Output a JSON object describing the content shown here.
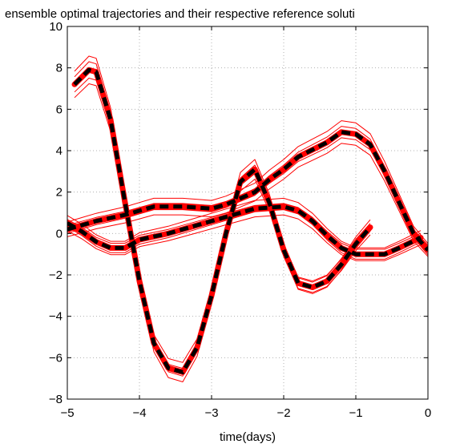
{
  "chart_data": {
    "type": "line",
    "title": "ensemble optimal trajectories and their respective reference soluti",
    "xlabel": "time(days)",
    "ylabel": "",
    "xlim": [
      -5,
      0
    ],
    "ylim": [
      -8,
      10
    ],
    "x_ticks": [
      -5,
      -4,
      -3,
      -2,
      -1,
      0
    ],
    "x_tick_labels": [
      "−5",
      "−4",
      "−3",
      "−2",
      "−1",
      "0"
    ],
    "y_ticks": [
      -8,
      -6,
      -4,
      -2,
      0,
      2,
      4,
      6,
      8,
      10
    ],
    "y_tick_labels": [
      "−8",
      "−6",
      "−4",
      "−2",
      "0",
      "2",
      "4",
      "6",
      "8",
      "10"
    ],
    "grid": true,
    "colors": {
      "ensemble": "#ff0000",
      "reference": "#000000"
    },
    "x": [
      -5.0,
      -4.8,
      -4.6,
      -4.4,
      -4.2,
      -4.0,
      -3.8,
      -3.6,
      -3.4,
      -3.2,
      -3.0,
      -2.8,
      -2.6,
      -2.4,
      -2.2,
      -2.0,
      -1.8,
      -1.6,
      -1.4,
      -1.2,
      -1.0,
      -0.8,
      -0.6,
      -0.4,
      -0.2,
      0.0
    ],
    "series": [
      {
        "role": "reference",
        "values": [
          7.2,
          7.9,
          7.8,
          5.5,
          1.5,
          -2.3,
          -5.3,
          -6.5,
          -6.7,
          -5.5,
          -3.0,
          0.0,
          2.5,
          3.1,
          1.5,
          -0.8,
          -2.4,
          -2.6,
          -2.3,
          -1.5,
          -0.5,
          0.3
        ],
        "x": [
          -4.9,
          -4.7,
          -4.6,
          -4.4,
          -4.2,
          -4.0,
          -3.8,
          -3.6,
          -3.4,
          -3.2,
          -3.0,
          -2.8,
          -2.6,
          -2.4,
          -2.2,
          -2.0,
          -1.8,
          -1.6,
          -1.4,
          -1.2,
          -1.0,
          -0.8
        ]
      },
      {
        "role": "reference",
        "values": [
          0.2,
          0.4,
          0.6,
          0.9,
          1.1,
          1.3,
          1.3,
          1.2,
          1.4,
          2.0,
          2.6,
          3.1,
          3.7,
          4.4,
          4.9,
          4.8,
          4.3,
          3.0,
          1.5,
          0.0,
          -0.8
        ],
        "x": [
          -5.0,
          -4.8,
          -4.6,
          -4.2,
          -4.0,
          -3.8,
          -3.4,
          -3.0,
          -2.8,
          -2.4,
          -2.2,
          -2.0,
          -1.8,
          -1.4,
          -1.2,
          -1.0,
          -0.8,
          -0.6,
          -0.4,
          -0.2,
          0.0
        ]
      },
      {
        "role": "reference",
        "values": [
          0.5,
          0.1,
          -0.4,
          -0.7,
          -0.7,
          -0.3,
          0.0,
          0.4,
          0.8,
          1.2,
          1.3,
          1.1,
          0.6,
          -0.1,
          -0.7,
          -1.0,
          -1.0,
          -0.7,
          -0.2
        ],
        "x": [
          -5.0,
          -4.8,
          -4.6,
          -4.4,
          -4.2,
          -4.0,
          -3.6,
          -3.2,
          -2.8,
          -2.4,
          -2.0,
          -1.8,
          -1.6,
          -1.4,
          -1.2,
          -1.0,
          -0.6,
          -0.4,
          -0.1
        ]
      }
    ]
  }
}
